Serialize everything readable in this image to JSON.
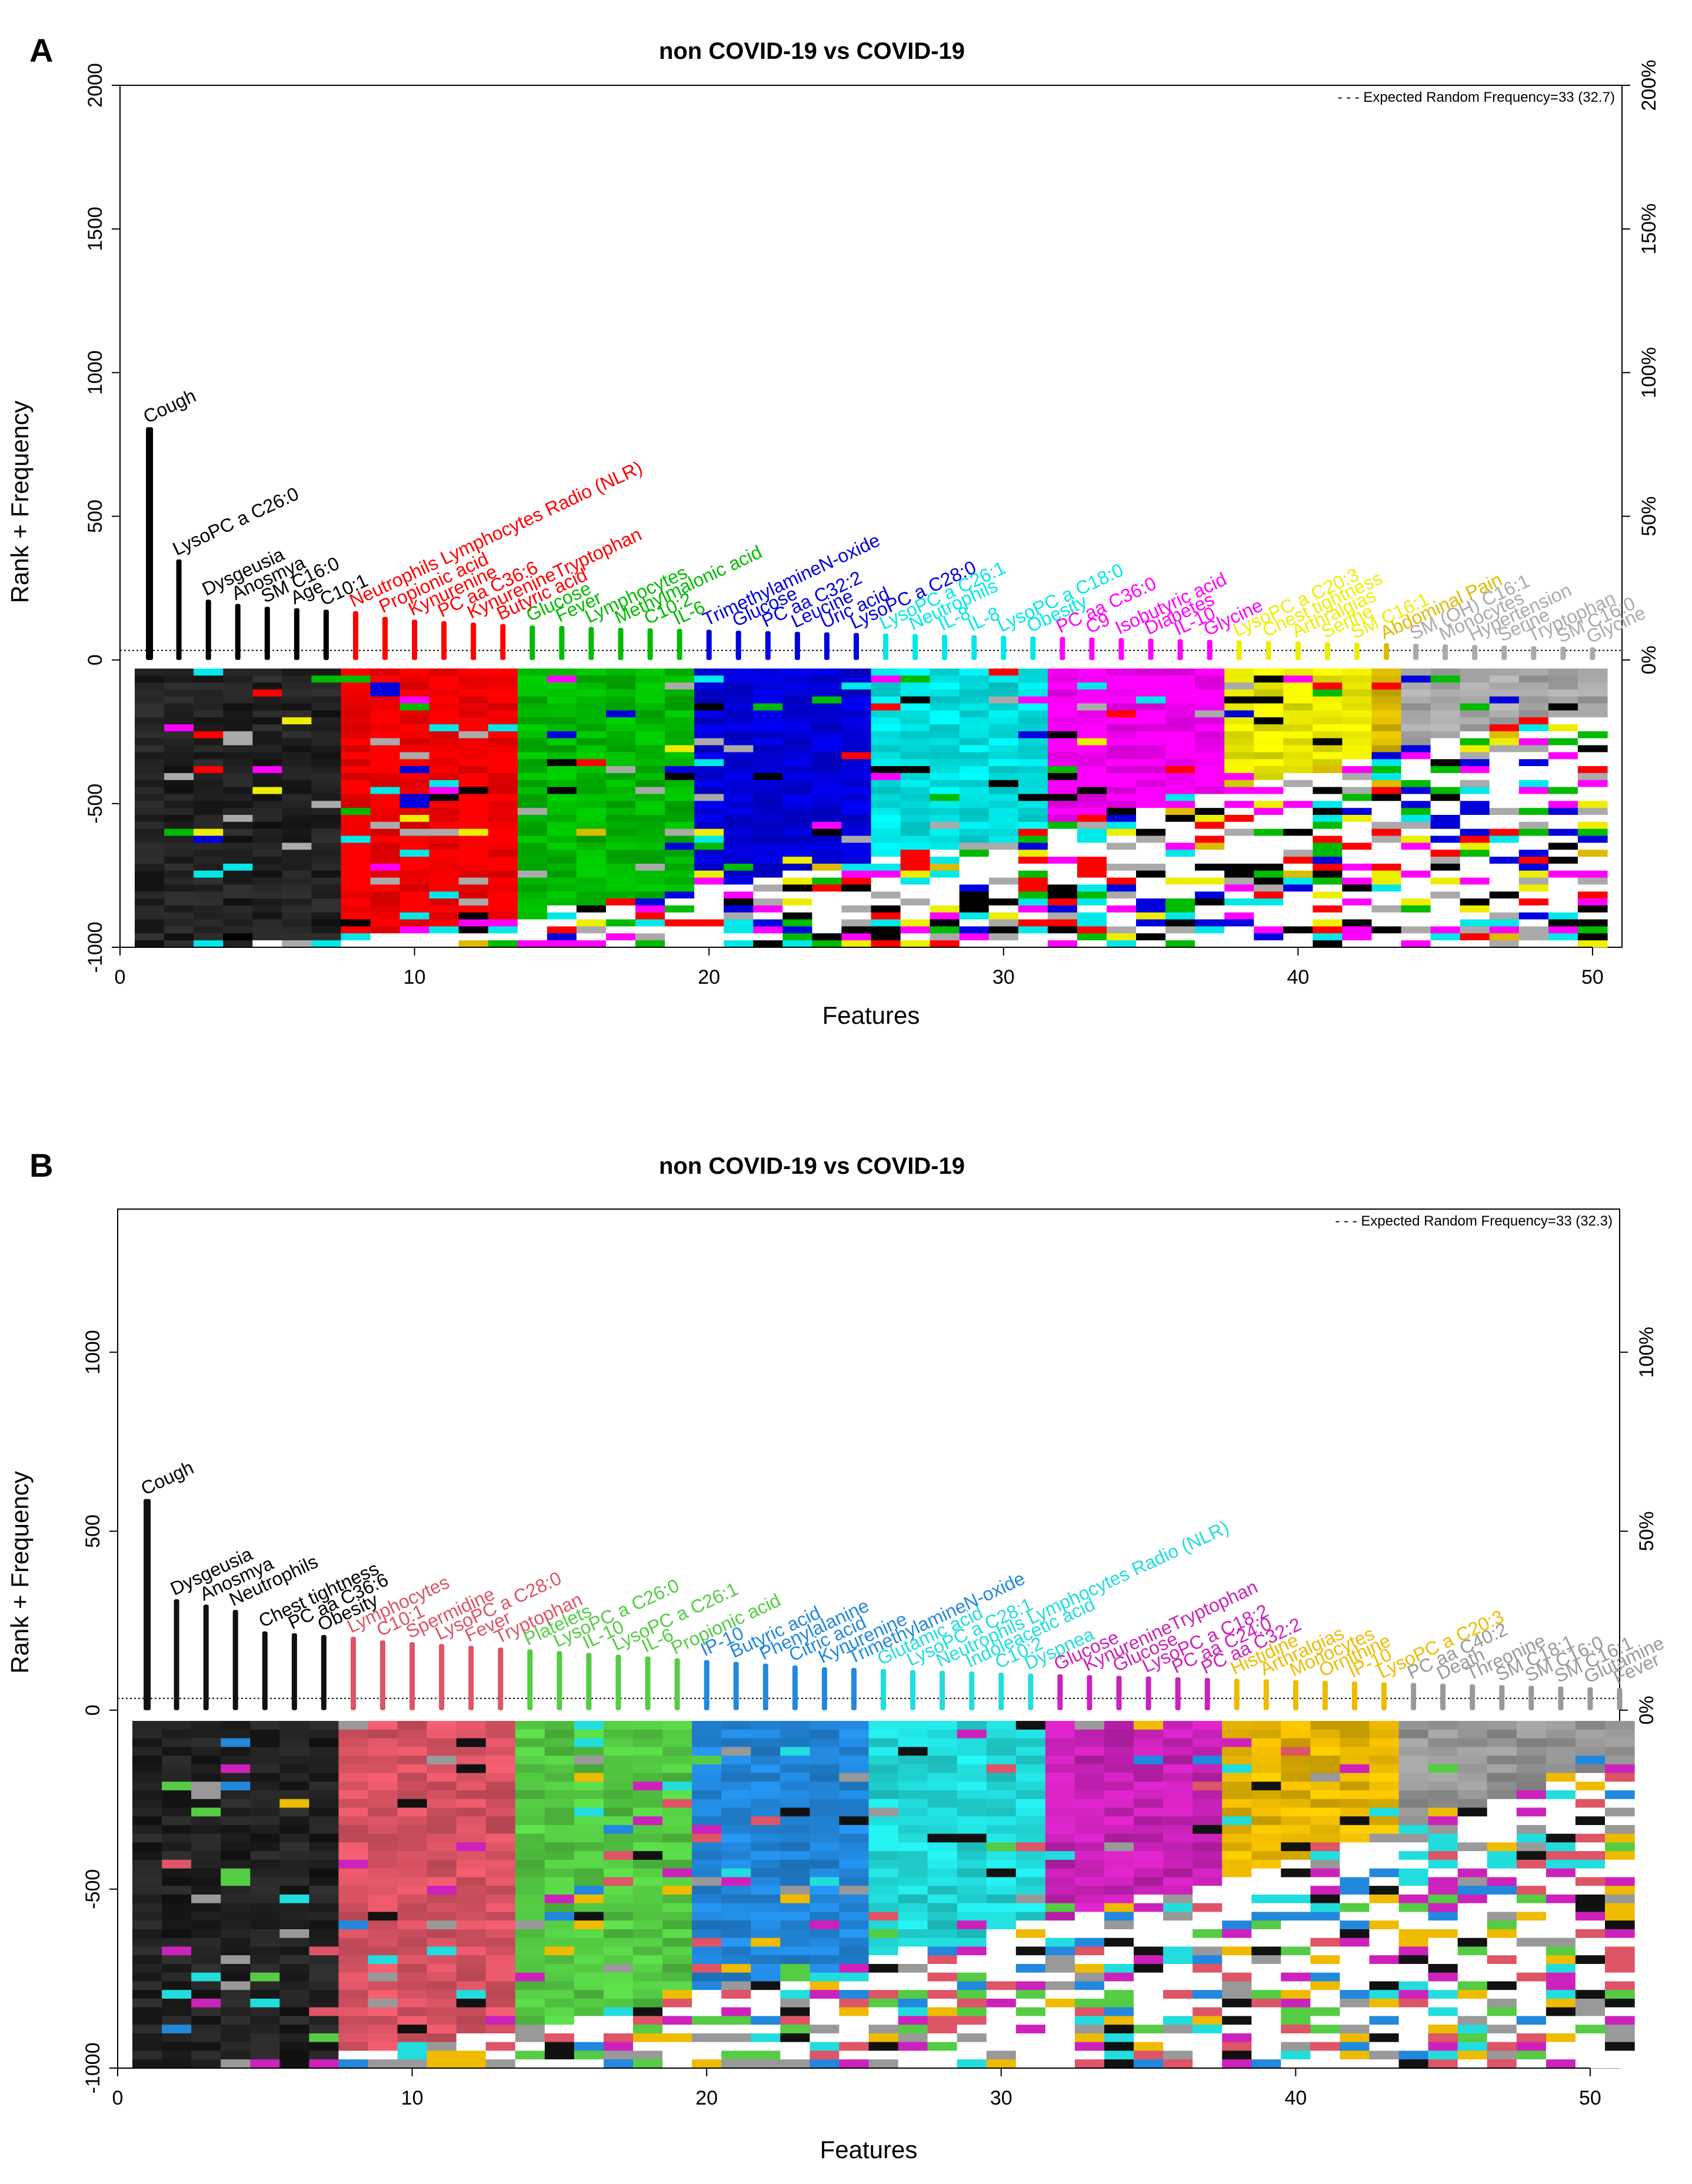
{
  "chart_data": [
    {
      "panel": "A",
      "type": "bar",
      "title": "non COVID-19 vs COVID-19",
      "xlabel": "Features",
      "ylabel": "Rank + Frequency",
      "xlim": [
        0,
        51
      ],
      "ylim": [
        -1000,
        2000
      ],
      "x_ticks": [
        "0",
        "10",
        "20",
        "30",
        "40",
        "50"
      ],
      "y_ticks": [
        "-1000",
        "-500",
        "0",
        "500",
        "1000",
        "1500",
        "2000"
      ],
      "right_ticks": [
        "0%",
        "50%",
        "100%",
        "150%",
        "200%"
      ],
      "legend": "- - - Expected Random Frequency=33 (32.7)",
      "expected_frequency": 33,
      "palette": [
        "#000000",
        "#ff0000",
        "#00bb00",
        "#0000dd",
        "#00e8e8",
        "#ff00ff",
        "#eeee00",
        "#ddbb00",
        "#aaaaaa"
      ],
      "features": [
        {
          "name": "Cough",
          "value": 810,
          "color": "#000000"
        },
        {
          "name": "LysoPC a C26:0",
          "value": 350,
          "color": "#000000"
        },
        {
          "name": "Dysgeusia",
          "value": 210,
          "color": "#000000"
        },
        {
          "name": "Anosmya",
          "value": 195,
          "color": "#000000"
        },
        {
          "name": "SM C16:0",
          "value": 185,
          "color": "#000000"
        },
        {
          "name": "Age",
          "value": 180,
          "color": "#000000"
        },
        {
          "name": "C10:1",
          "value": 175,
          "color": "#000000"
        },
        {
          "name": "Neutrophils Lymphocytes Radio (NLR)",
          "value": 170,
          "color": "#ff0000"
        },
        {
          "name": "Propionic acid",
          "value": 150,
          "color": "#ff0000"
        },
        {
          "name": "Kynurenine",
          "value": 140,
          "color": "#ff0000"
        },
        {
          "name": "PC aa C36:6",
          "value": 135,
          "color": "#ff0000"
        },
        {
          "name": "KynurenineTryptophan",
          "value": 130,
          "color": "#ff0000"
        },
        {
          "name": "Butyric acid",
          "value": 125,
          "color": "#ff0000"
        },
        {
          "name": "Glucose",
          "value": 120,
          "color": "#00bb00"
        },
        {
          "name": "Fever",
          "value": 118,
          "color": "#00bb00"
        },
        {
          "name": "Lymphocytes",
          "value": 115,
          "color": "#00bb00"
        },
        {
          "name": "Methylmalonic acid",
          "value": 112,
          "color": "#00bb00"
        },
        {
          "name": "C10:2",
          "value": 110,
          "color": "#00bb00"
        },
        {
          "name": "IL-6",
          "value": 108,
          "color": "#00bb00"
        },
        {
          "name": "TrimethylamineN-oxide",
          "value": 105,
          "color": "#0000dd"
        },
        {
          "name": "Glucose",
          "value": 102,
          "color": "#0000dd"
        },
        {
          "name": "PC aa C32:2",
          "value": 100,
          "color": "#0000dd"
        },
        {
          "name": "Leucine",
          "value": 98,
          "color": "#0000dd"
        },
        {
          "name": "Uric acid",
          "value": 96,
          "color": "#0000dd"
        },
        {
          "name": "LysoPC a C28:0",
          "value": 94,
          "color": "#0000dd"
        },
        {
          "name": "LysoPC a C26:1",
          "value": 92,
          "color": "#00e8e8"
        },
        {
          "name": "Neutrophils",
          "value": 90,
          "color": "#00e8e8"
        },
        {
          "name": "IL-8",
          "value": 88,
          "color": "#00e8e8"
        },
        {
          "name": "IL-8",
          "value": 86,
          "color": "#00e8e8"
        },
        {
          "name": "LysoPC a C18:0",
          "value": 84,
          "color": "#00e8e8"
        },
        {
          "name": "Obesity",
          "value": 82,
          "color": "#00e8e8"
        },
        {
          "name": "PC aa C36:0",
          "value": 80,
          "color": "#ff00ff"
        },
        {
          "name": "C9",
          "value": 78,
          "color": "#ff00ff"
        },
        {
          "name": "Isobutyric acid",
          "value": 76,
          "color": "#ff00ff"
        },
        {
          "name": "Diabetes",
          "value": 74,
          "color": "#ff00ff"
        },
        {
          "name": "IL-10",
          "value": 72,
          "color": "#ff00ff"
        },
        {
          "name": "Glycine",
          "value": 70,
          "color": "#ff00ff"
        },
        {
          "name": "LysoPC a C20:3",
          "value": 68,
          "color": "#eeee00"
        },
        {
          "name": "Chest tightness",
          "value": 66,
          "color": "#eeee00"
        },
        {
          "name": "Arthralgias",
          "value": 64,
          "color": "#eeee00"
        },
        {
          "name": "Serine",
          "value": 62,
          "color": "#eeee00"
        },
        {
          "name": "SM C16:1",
          "value": 60,
          "color": "#eeee00"
        },
        {
          "name": "Abdominal Pain",
          "value": 58,
          "color": "#ddbb00"
        },
        {
          "name": "SM (OH) C16:1",
          "value": 56,
          "color": "#aaaaaa"
        },
        {
          "name": "Monocytes",
          "value": 54,
          "color": "#aaaaaa"
        },
        {
          "name": "Hypertension",
          "value": 52,
          "color": "#aaaaaa"
        },
        {
          "name": "Serine",
          "value": 50,
          "color": "#aaaaaa"
        },
        {
          "name": "Tryptophan",
          "value": 48,
          "color": "#aaaaaa"
        },
        {
          "name": "SM C16:0",
          "value": 46,
          "color": "#aaaaaa"
        },
        {
          "name": "Glycine",
          "value": 44,
          "color": "#aaaaaa"
        }
      ]
    },
    {
      "panel": "B",
      "type": "bar",
      "title": "non COVID-19 vs COVID-19",
      "xlabel": "Features",
      "ylabel": "Rank + Frequency",
      "xlim": [
        0,
        51
      ],
      "ylim": [
        -1000,
        1400
      ],
      "x_ticks": [
        "0",
        "10",
        "20",
        "30",
        "40",
        "50"
      ],
      "y_ticks": [
        "-1000",
        "-500",
        "0",
        "500",
        "1000"
      ],
      "right_ticks": [
        "0%",
        "50%",
        "100%"
      ],
      "legend": "- - - Expected Random Frequency=33 (32.3)",
      "expected_frequency": 33,
      "palette": [
        "#111111",
        "#dd5566",
        "#55cc44",
        "#2288dd",
        "#22dddd",
        "#cc22bb",
        "#eebb00",
        "#999999"
      ],
      "features": [
        {
          "name": "Cough",
          "value": 590,
          "color": "#111111"
        },
        {
          "name": "Dysgeusia",
          "value": 310,
          "color": "#111111"
        },
        {
          "name": "Anosmya",
          "value": 295,
          "color": "#111111"
        },
        {
          "name": "Neutrophils",
          "value": 280,
          "color": "#111111"
        },
        {
          "name": "Chest tightness",
          "value": 220,
          "color": "#111111"
        },
        {
          "name": "PC aa C36:6",
          "value": 215,
          "color": "#111111"
        },
        {
          "name": "Obesity",
          "value": 210,
          "color": "#111111"
        },
        {
          "name": "Lymphocytes",
          "value": 205,
          "color": "#dd5566"
        },
        {
          "name": "C10:1",
          "value": 195,
          "color": "#dd5566"
        },
        {
          "name": "Spermidine",
          "value": 190,
          "color": "#dd5566"
        },
        {
          "name": "LysoPC a C28:0",
          "value": 185,
          "color": "#dd5566"
        },
        {
          "name": "Fever",
          "value": 180,
          "color": "#dd5566"
        },
        {
          "name": "Tryptophan",
          "value": 175,
          "color": "#dd5566"
        },
        {
          "name": "Platelets",
          "value": 170,
          "color": "#55cc44"
        },
        {
          "name": "LysoPC a C26:0",
          "value": 165,
          "color": "#55cc44"
        },
        {
          "name": "IL-10",
          "value": 160,
          "color": "#55cc44"
        },
        {
          "name": "LysoPC a C26:1",
          "value": 155,
          "color": "#55cc44"
        },
        {
          "name": "IL-6",
          "value": 150,
          "color": "#55cc44"
        },
        {
          "name": "Propionic acid",
          "value": 145,
          "color": "#55cc44"
        },
        {
          "name": "IP-10",
          "value": 140,
          "color": "#2288dd"
        },
        {
          "name": "Butyric acid",
          "value": 135,
          "color": "#2288dd"
        },
        {
          "name": "Phenylalanine",
          "value": 130,
          "color": "#2288dd"
        },
        {
          "name": "Citric acid",
          "value": 125,
          "color": "#2288dd"
        },
        {
          "name": "Kynurenine",
          "value": 120,
          "color": "#2288dd"
        },
        {
          "name": "TrimethylamineN-oxide",
          "value": 118,
          "color": "#2288dd"
        },
        {
          "name": "Glutamic acid",
          "value": 115,
          "color": "#22dddd"
        },
        {
          "name": "LysoPC a C28:1",
          "value": 112,
          "color": "#22dddd"
        },
        {
          "name": "Neutrophils Lymphocytes Radio (NLR)",
          "value": 110,
          "color": "#22dddd"
        },
        {
          "name": "Indoleacetic acid",
          "value": 108,
          "color": "#22dddd"
        },
        {
          "name": "C10:2",
          "value": 105,
          "color": "#22dddd"
        },
        {
          "name": "Dyspnea",
          "value": 102,
          "color": "#22dddd"
        },
        {
          "name": "Glucose",
          "value": 100,
          "color": "#cc22bb"
        },
        {
          "name": "KynurenineTryptophan",
          "value": 98,
          "color": "#cc22bb"
        },
        {
          "name": "Glucose",
          "value": 96,
          "color": "#cc22bb"
        },
        {
          "name": "LysoPC a C18:2",
          "value": 94,
          "color": "#cc22bb"
        },
        {
          "name": "PC aa C24:0",
          "value": 92,
          "color": "#cc22bb"
        },
        {
          "name": "PC aa C32:2",
          "value": 90,
          "color": "#cc22bb"
        },
        {
          "name": "Histidine",
          "value": 88,
          "color": "#eebb00"
        },
        {
          "name": "Arthralgias",
          "value": 86,
          "color": "#eebb00"
        },
        {
          "name": "Monocytes",
          "value": 84,
          "color": "#eebb00"
        },
        {
          "name": "Ornithine",
          "value": 82,
          "color": "#eebb00"
        },
        {
          "name": "IP-10",
          "value": 80,
          "color": "#eebb00"
        },
        {
          "name": "LysoPC a C20:3",
          "value": 78,
          "color": "#eebb00"
        },
        {
          "name": "PC aa C40:2",
          "value": 76,
          "color": "#999999"
        },
        {
          "name": "Death",
          "value": 74,
          "color": "#999999"
        },
        {
          "name": "Threonine",
          "value": 72,
          "color": "#999999"
        },
        {
          "name": "SM C18:1",
          "value": 70,
          "color": "#999999"
        },
        {
          "name": "SM C16:0",
          "value": 68,
          "color": "#999999"
        },
        {
          "name": "SM C16:1",
          "value": 66,
          "color": "#999999"
        },
        {
          "name": "Glutamine",
          "value": 64,
          "color": "#999999"
        },
        {
          "name": "Fever",
          "value": 62,
          "color": "#999999"
        }
      ]
    }
  ]
}
